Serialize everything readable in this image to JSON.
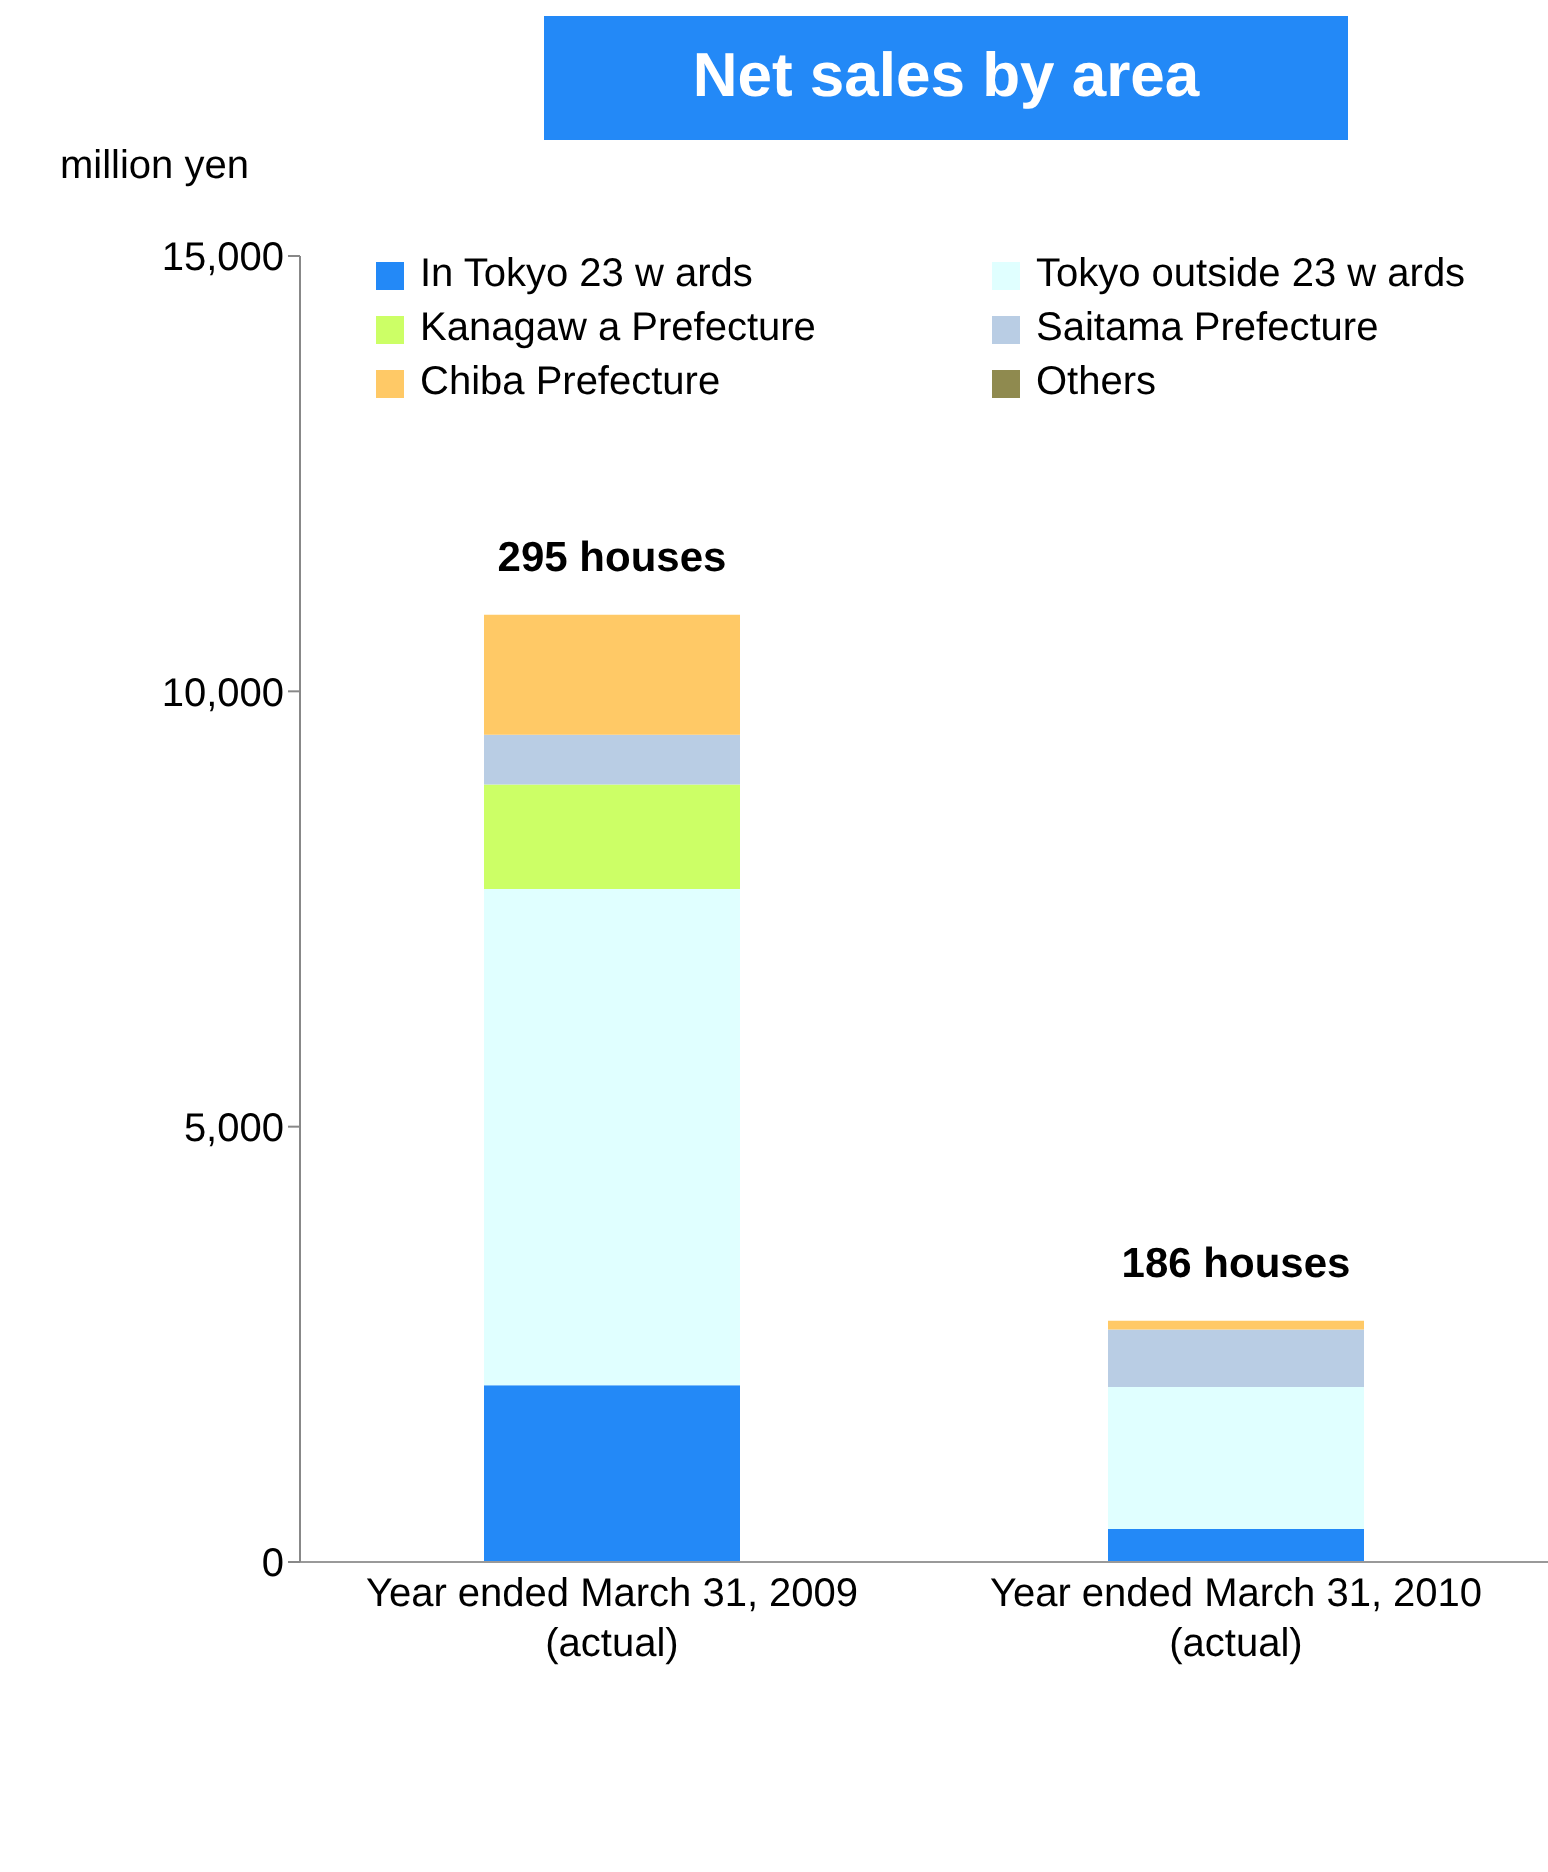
{
  "chart_data": {
    "type": "bar",
    "title": "Net sales by area",
    "ylabel": "million yen",
    "categories": [
      "Year ended March 31, 2009 (actual)",
      "Year ended March 31, 2010 (actual)"
    ],
    "stacked": true,
    "series": [
      {
        "name": "In Tokyo 23 w ards",
        "color": "#2389f7",
        "values": [
          2030,
          380
        ]
      },
      {
        "name": "Tokyo outside 23 w ards",
        "color": "#e0ffff",
        "values": [
          5700,
          1630
        ]
      },
      {
        "name": "Kanagaw a Prefecture",
        "color": "#ccff66",
        "values": [
          1200,
          0
        ]
      },
      {
        "name": "Saitama Prefecture",
        "color": "#b9cde4",
        "values": [
          570,
          660
        ]
      },
      {
        "name": "Chiba Prefecture",
        "color": "#ffc966",
        "values": [
          1380,
          100
        ]
      },
      {
        "name": "Others",
        "color": "#8f8a4f",
        "values": [
          0,
          0
        ]
      }
    ],
    "ylim": [
      0,
      15000
    ],
    "yticks": [
      0,
      {
        "value": 5000,
        "label": "5,000"
      },
      {
        "value": 10000,
        "label": "10,000"
      },
      {
        "value": 15000,
        "label": "15,000"
      }
    ],
    "annotations": [
      {
        "text": "295 houses",
        "x": "Year ended March 31, 2009 (actual)",
        "y": 10880
      },
      {
        "text": "186 houses",
        "x": "Year ended March 31, 2010 (actual)",
        "y": 2770
      }
    ],
    "legend": "top",
    "grid": false
  }
}
